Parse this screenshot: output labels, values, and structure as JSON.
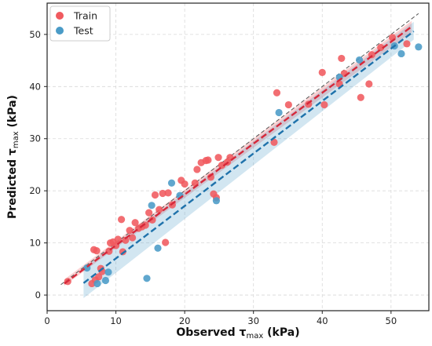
{
  "chart_data": {
    "type": "scatter",
    "title": "",
    "xlabel": {
      "prefix": "Observed ",
      "symbol": "τ",
      "sub": "max",
      "suffix": " (kPa)"
    },
    "ylabel": {
      "prefix": "Predicted ",
      "symbol": "τ",
      "sub": "max",
      "suffix": " (kPa)"
    },
    "xlim": [
      0,
      55.5
    ],
    "ylim": [
      -3,
      56
    ],
    "xticks": [
      0,
      10,
      20,
      30,
      40,
      50
    ],
    "yticks": [
      0,
      10,
      20,
      30,
      40,
      50
    ],
    "grid": true,
    "legend_position": "top-left",
    "reference_line": {
      "style": "dashed",
      "color": "#555555",
      "from": [
        2,
        2
      ],
      "to": [
        54,
        54
      ]
    },
    "series": [
      {
        "name": "Train",
        "color": "#f05a5f",
        "fit": {
          "from": [
            2.5,
            2.2
          ],
          "to": [
            53,
            51.5
          ]
        },
        "band": {
          "lower": [
            [
              2.5,
              1.8
            ],
            [
              53,
              50.4
            ]
          ],
          "upper": [
            [
              2.5,
              3.0
            ],
            [
              53,
              52.6
            ]
          ]
        },
        "points": [
          [
            3,
            2.6
          ],
          [
            6.5,
            2.2
          ],
          [
            7,
            2.9
          ],
          [
            7.5,
            3.5
          ],
          [
            8,
            4.5
          ],
          [
            6.8,
            8.7
          ],
          [
            7.2,
            8.5
          ],
          [
            7.8,
            5.1
          ],
          [
            9,
            8.4
          ],
          [
            9.2,
            10.0
          ],
          [
            9.6,
            10.2
          ],
          [
            10,
            9.5
          ],
          [
            10.3,
            10.7
          ],
          [
            10.8,
            14.5
          ],
          [
            11,
            8.3
          ],
          [
            11.4,
            10.5
          ],
          [
            12,
            12.4
          ],
          [
            12.4,
            11.0
          ],
          [
            12.8,
            13.9
          ],
          [
            13.3,
            12.8
          ],
          [
            13.8,
            13.1
          ],
          [
            14.3,
            13.4
          ],
          [
            14.8,
            15.8
          ],
          [
            15.3,
            14.4
          ],
          [
            15.7,
            19.2
          ],
          [
            16.3,
            16.4
          ],
          [
            16.8,
            19.5
          ],
          [
            17.2,
            10.1
          ],
          [
            17.6,
            19.6
          ],
          [
            18.2,
            17.3
          ],
          [
            19.5,
            22.0
          ],
          [
            20,
            21.3
          ],
          [
            21.5,
            21.5
          ],
          [
            21.8,
            24.1
          ],
          [
            22.4,
            25.4
          ],
          [
            23.1,
            25.8
          ],
          [
            23.4,
            25.9
          ],
          [
            23.8,
            22.6
          ],
          [
            24.2,
            19.4
          ],
          [
            24.6,
            18.7
          ],
          [
            24.9,
            26.4
          ],
          [
            25.4,
            24.9
          ],
          [
            26.2,
            25.5
          ],
          [
            26.6,
            26.4
          ],
          [
            33,
            29.3
          ],
          [
            33.4,
            38.8
          ],
          [
            35.1,
            36.5
          ],
          [
            38,
            36.6
          ],
          [
            40,
            42.7
          ],
          [
            40.3,
            36.5
          ],
          [
            42.5,
            40.5
          ],
          [
            42.8,
            45.4
          ],
          [
            43.2,
            42.5
          ],
          [
            45.6,
            37.9
          ],
          [
            46.8,
            40.5
          ],
          [
            47.2,
            46.1
          ],
          [
            48.5,
            47.5
          ],
          [
            50.2,
            49.4
          ],
          [
            52.3,
            48.2
          ]
        ]
      },
      {
        "name": "Test",
        "color": "#4a9bc7",
        "fit": {
          "from": [
            5.3,
            2.3
          ],
          "to": [
            53.3,
            50.6
          ]
        },
        "band": {
          "lower": [
            [
              5.3,
              -0.6
            ],
            [
              53.3,
              49.0
            ]
          ],
          "upper": [
            [
              5.3,
              5.2
            ],
            [
              53.3,
              52.4
            ]
          ]
        },
        "points": [
          [
            5.8,
            5.2
          ],
          [
            7.3,
            2.2
          ],
          [
            8.5,
            2.8
          ],
          [
            8.9,
            4.4
          ],
          [
            14.5,
            3.2
          ],
          [
            15.2,
            17.2
          ],
          [
            16.1,
            9.0
          ],
          [
            18.1,
            21.5
          ],
          [
            19.3,
            19.1
          ],
          [
            24.6,
            18.1
          ],
          [
            33.7,
            35.0
          ],
          [
            42.5,
            41.8
          ],
          [
            45.4,
            45.1
          ],
          [
            50.5,
            47.8
          ],
          [
            51.5,
            46.3
          ],
          [
            54,
            47.6
          ]
        ]
      }
    ]
  }
}
